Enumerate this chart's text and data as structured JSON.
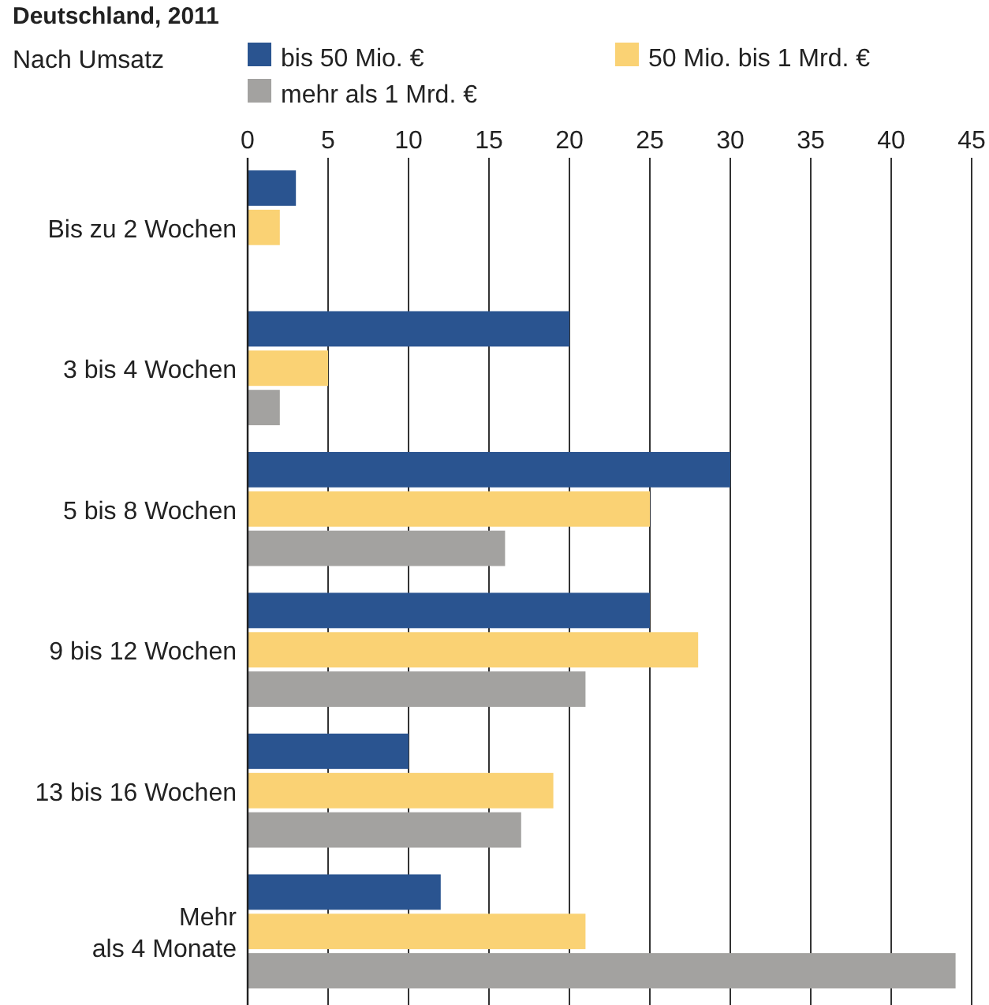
{
  "chart_data": {
    "type": "bar",
    "orientation": "horizontal",
    "title": "Deutschland, 2011",
    "legend_title": "Nach Umsatz",
    "categories": [
      "Bis zu 2 Wochen",
      "3 bis 4 Wochen",
      "5 bis 8 Wochen",
      "9 bis 12 Wochen",
      "13 bis 16 Wochen",
      "Mehr\nals 4 Monate"
    ],
    "series": [
      {
        "name": "bis 50 Mio. €",
        "color": "#2a5490",
        "values": [
          3,
          20,
          30,
          25,
          10,
          12
        ]
      },
      {
        "name": "50 Mio. bis 1 Mrd. €",
        "color": "#fad274",
        "values": [
          2,
          5,
          25,
          28,
          19,
          21
        ]
      },
      {
        "name": "mehr als 1 Mrd. €",
        "color": "#a3a2a0",
        "values": [
          0,
          2,
          16,
          21,
          17,
          44
        ]
      }
    ],
    "xlim": [
      0,
      45
    ],
    "xticks": [
      0,
      5,
      10,
      15,
      20,
      25,
      30,
      35,
      40,
      45
    ],
    "grid": "x",
    "legend": "top"
  }
}
